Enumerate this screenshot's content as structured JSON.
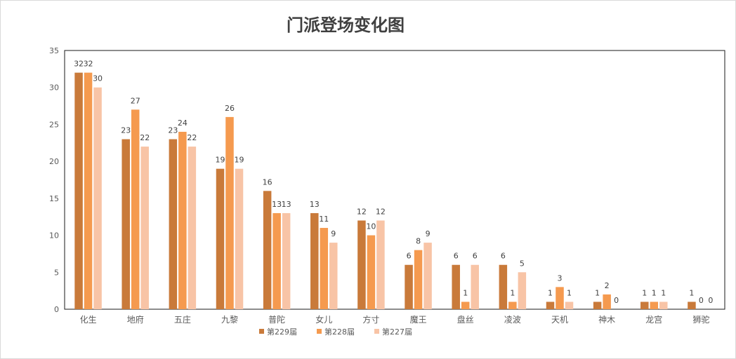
{
  "chart_data": {
    "type": "bar",
    "title": "门派登场变化图",
    "xlabel": "",
    "ylabel": "",
    "ylim": [
      0,
      35
    ],
    "yticks": [
      0,
      5,
      10,
      15,
      20,
      25,
      30,
      35
    ],
    "grid": false,
    "legend_position": "bottom",
    "categories": [
      "化生",
      "地府",
      "五庄",
      "九黎",
      "普陀",
      "女儿",
      "方寸",
      "魔王",
      "盘丝",
      "凌波",
      "天机",
      "神木",
      "龙宫",
      "狮驼"
    ],
    "series": [
      {
        "name": "第229届",
        "color": "#c97a3a",
        "values": [
          32,
          23,
          23,
          19,
          16,
          13,
          12,
          6,
          6,
          6,
          1,
          1,
          1,
          1
        ]
      },
      {
        "name": "第228届",
        "color": "#f59a4f",
        "values": [
          32,
          27,
          24,
          26,
          13,
          11,
          10,
          8,
          1,
          1,
          3,
          2,
          1,
          0
        ]
      },
      {
        "name": "第227届",
        "color": "#f8c4a6",
        "values": [
          30,
          22,
          22,
          19,
          13,
          9,
          12,
          9,
          6,
          5,
          1,
          0,
          1,
          0
        ]
      }
    ]
  }
}
